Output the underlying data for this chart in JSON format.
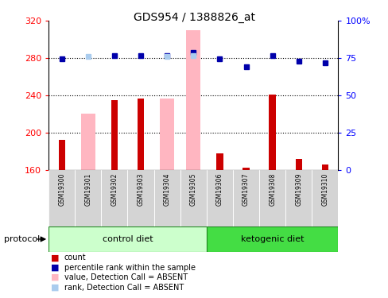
{
  "title": "GDS954 / 1388826_at",
  "samples": [
    "GSM19300",
    "GSM19301",
    "GSM19302",
    "GSM19303",
    "GSM19304",
    "GSM19305",
    "GSM19306",
    "GSM19307",
    "GSM19308",
    "GSM19309",
    "GSM19310"
  ],
  "groups": [
    "control diet",
    "control diet",
    "control diet",
    "control diet",
    "control diet",
    "control diet",
    "ketogenic diet",
    "ketogenic diet",
    "ketogenic diet",
    "ketogenic diet",
    "ketogenic diet"
  ],
  "red_bar_values": [
    192,
    null,
    235,
    237,
    null,
    null,
    178,
    162,
    241,
    172,
    166
  ],
  "pink_bar_values": [
    null,
    220,
    null,
    null,
    237,
    310,
    null,
    null,
    null,
    null,
    null
  ],
  "blue_sq_values": [
    279,
    null,
    283,
    283,
    283,
    286,
    279,
    271,
    283,
    277,
    275
  ],
  "lblue_sq_values": [
    null,
    282,
    null,
    null,
    282,
    283,
    null,
    null,
    null,
    null,
    null
  ],
  "ylim_left": [
    160,
    320
  ],
  "ylim_right": [
    0,
    100
  ],
  "yticks_left": [
    160,
    200,
    240,
    280,
    320
  ],
  "yticks_right": [
    0,
    25,
    50,
    75,
    100
  ],
  "ytick_right_labels": [
    "0",
    "25",
    "50",
    "75",
    "100%"
  ],
  "group_colors": {
    "control diet": "#ccffcc",
    "ketogenic diet": "#44dd44"
  },
  "group_edge_color": "#228822",
  "gray_bg": "#d4d4d4",
  "legend_items": [
    {
      "label": "count",
      "color": "#CC0000"
    },
    {
      "label": "percentile rank within the sample",
      "color": "#0000AA"
    },
    {
      "label": "value, Detection Call = ABSENT",
      "color": "#FFB6C1"
    },
    {
      "label": "rank, Detection Call = ABSENT",
      "color": "#AACCEE"
    }
  ],
  "hgrid_vals": [
    200,
    240,
    280
  ],
  "pink_bar_width": 0.55,
  "red_bar_width": 0.25
}
